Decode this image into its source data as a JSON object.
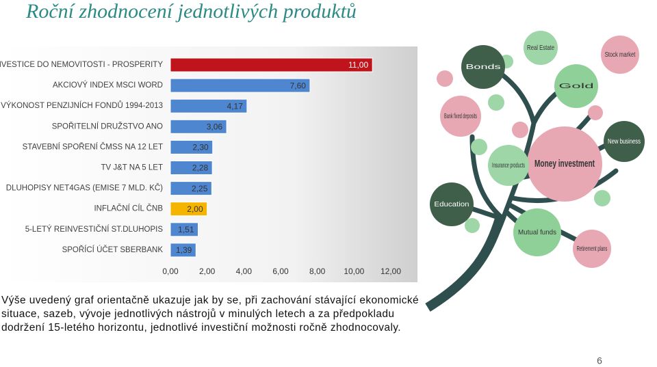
{
  "title": "Roční zhodnocení jednotlivých produktů",
  "chart_data": {
    "type": "barh",
    "categories": [
      "INVESTICE DO NEMOVITOSTI - PROSPERITY",
      "AKCIOVÝ INDEX MSCI WORD",
      "VÝKONOST PENZIJNÍCH FONDŮ 1994-2013",
      "SPOŘITELNÍ DRUŽSTVO ANO",
      "STAVEBNÍ SPOŘENÍ ČMSS NA 12 LET",
      "TV J&T NA 5 LET",
      "DLUHOPISY NET4GAS (EMISE 7 MLD. KČ)",
      "INFLAČNÍ CÍL ČNB",
      "5-LETÝ REINVESTIČNÍ ST.DLUHOPIS",
      "SPOŘÍCÍ ÚČET SBERBANK"
    ],
    "values": [
      11,
      7.6,
      4.17,
      3.06,
      2.3,
      2.28,
      2.25,
      2,
      1.51,
      1.39
    ],
    "value_labels": [
      "11,00",
      "7,60",
      "4,17",
      "3,06",
      "2,30",
      "2,28",
      "2,25",
      "2,00",
      "1,51",
      "1,39"
    ],
    "colors": [
      "#c0141c",
      "#4f86d0",
      "#4f86d0",
      "#4f86d0",
      "#4f86d0",
      "#4f86d0",
      "#4f86d0",
      "#f5b400",
      "#4f86d0",
      "#4f86d0"
    ],
    "xlim": [
      0,
      12
    ],
    "xticks": [
      {
        "value": 0,
        "label": "0,00"
      },
      {
        "value": 2,
        "label": "2,00"
      },
      {
        "value": 4,
        "label": "4,00"
      },
      {
        "value": 6,
        "label": "6,00"
      },
      {
        "value": 8,
        "label": "8,00"
      },
      {
        "value": 10,
        "label": "10,00"
      },
      {
        "value": 12,
        "label": "12,00"
      }
    ]
  },
  "illustration": {
    "labels": [
      "Real Estate",
      "Stock market",
      "Bonds",
      "Gold",
      "Bank fixed deposits",
      "Money investment",
      "Insurance products",
      "New business",
      "Education",
      "Mutual funds",
      "Retirement plans"
    ]
  },
  "paragraph": [
    "Výše uvedený graf orientačně ukazuje jak by se, při zachování stávající ekonomické",
    "situace, sazeb, vývoje jednotlivých nástrojů v minulých letech a za předpokladu",
    "dodržení 15-letého horizontu, jednotlivé investiční možnosti ročně zhodnocovaly."
  ],
  "page_number": "6"
}
